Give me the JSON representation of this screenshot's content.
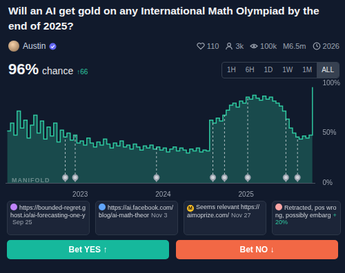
{
  "header": {
    "title": "Will an AI get gold on any International Math Olympiad by the end of 2025?",
    "author": "Austin",
    "stats": [
      "110",
      "3k",
      "100k",
      "M6.5m",
      "2026"
    ]
  },
  "probability": {
    "value": "96%",
    "label": "chance",
    "change": "↑66"
  },
  "time_ranges": [
    "1H",
    "6H",
    "1D",
    "1W",
    "1M",
    "ALL"
  ],
  "selected_range": "ALL",
  "watermark": "MANIFOLD",
  "chart_data": {
    "type": "line",
    "color": "#2fc9a0",
    "x": [
      2022.12,
      2022.16,
      2022.2,
      2022.24,
      2022.28,
      2022.32,
      2022.36,
      2022.4,
      2022.44,
      2022.48,
      2022.52,
      2022.56,
      2022.6,
      2022.64,
      2022.68,
      2022.72,
      2022.76,
      2022.8,
      2022.84,
      2022.88,
      2022.92,
      2022.96,
      2023,
      2023.04,
      2023.08,
      2023.12,
      2023.16,
      2023.2,
      2023.24,
      2023.28,
      2023.32,
      2023.36,
      2023.4,
      2023.44,
      2023.48,
      2023.52,
      2023.56,
      2023.6,
      2023.64,
      2023.68,
      2023.72,
      2023.76,
      2023.8,
      2023.84,
      2023.88,
      2023.92,
      2023.96,
      2024,
      2024.04,
      2024.08,
      2024.12,
      2024.16,
      2024.2,
      2024.24,
      2024.28,
      2024.32,
      2024.36,
      2024.4,
      2024.44,
      2024.48,
      2024.52,
      2024.56,
      2024.6,
      2024.64,
      2024.68,
      2024.72,
      2024.76,
      2024.8,
      2024.84,
      2024.88,
      2024.92,
      2024.96,
      2025,
      2025.04,
      2025.08,
      2025.12,
      2025.16,
      2025.2,
      2025.24,
      2025.28,
      2025.32,
      2025.36,
      2025.4,
      2025.44,
      2025.48,
      2025.52,
      2025.56,
      2025.6,
      2025.64,
      2025.68,
      2025.72,
      2025.76,
      2025.8
    ],
    "values": [
      52,
      60,
      48,
      72,
      55,
      63,
      45,
      58,
      68,
      50,
      62,
      44,
      56,
      47,
      60,
      41,
      53,
      46,
      50,
      43,
      48,
      40,
      42,
      38,
      45,
      40,
      36,
      41,
      38,
      44,
      39,
      35,
      40,
      37,
      42,
      36,
      38,
      34,
      39,
      36,
      33,
      37,
      35,
      38,
      34,
      36,
      33,
      35,
      31,
      34,
      36,
      32,
      35,
      33,
      30,
      34,
      32,
      35,
      31,
      33,
      32,
      63,
      60,
      65,
      62,
      68,
      73,
      78,
      80,
      76,
      82,
      80,
      86,
      84,
      88,
      85,
      83,
      87,
      84,
      86,
      82,
      80,
      77,
      72,
      64,
      55,
      50,
      46,
      44,
      47,
      45,
      48,
      96
    ],
    "xlim": [
      2022.1,
      2025.83
    ],
    "xticks": [
      2023,
      2024,
      2025
    ],
    "ylim": [
      0,
      100
    ],
    "yticks": [
      {
        "value": 0,
        "label": "0%"
      },
      {
        "value": 50,
        "label": "50%"
      },
      {
        "value": 100,
        "label": "100%"
      }
    ],
    "grid": false,
    "markers": [
      2022.82,
      2022.94,
      2023.92,
      2024.6,
      2024.74,
      2025.02,
      2025.48,
      2025.62
    ]
  },
  "comments": [
    {
      "text": "https://bounded-regret.ghost.io/ai-forecasting-one-y",
      "date": "Sep 25"
    },
    {
      "text": "https://ai.facebook.com/blog/ai-math-theor",
      "date": "Nov 3"
    },
    {
      "badge": "M",
      "text": "Seems relevant https://aimoprize.com/",
      "date": "Nov 27"
    },
    {
      "text": "Retracted, pos wrong, possibly embarg",
      "change": "+20%"
    }
  ],
  "buttons": {
    "yes": "Bet YES ↑",
    "no": "Bet NO ↓"
  }
}
